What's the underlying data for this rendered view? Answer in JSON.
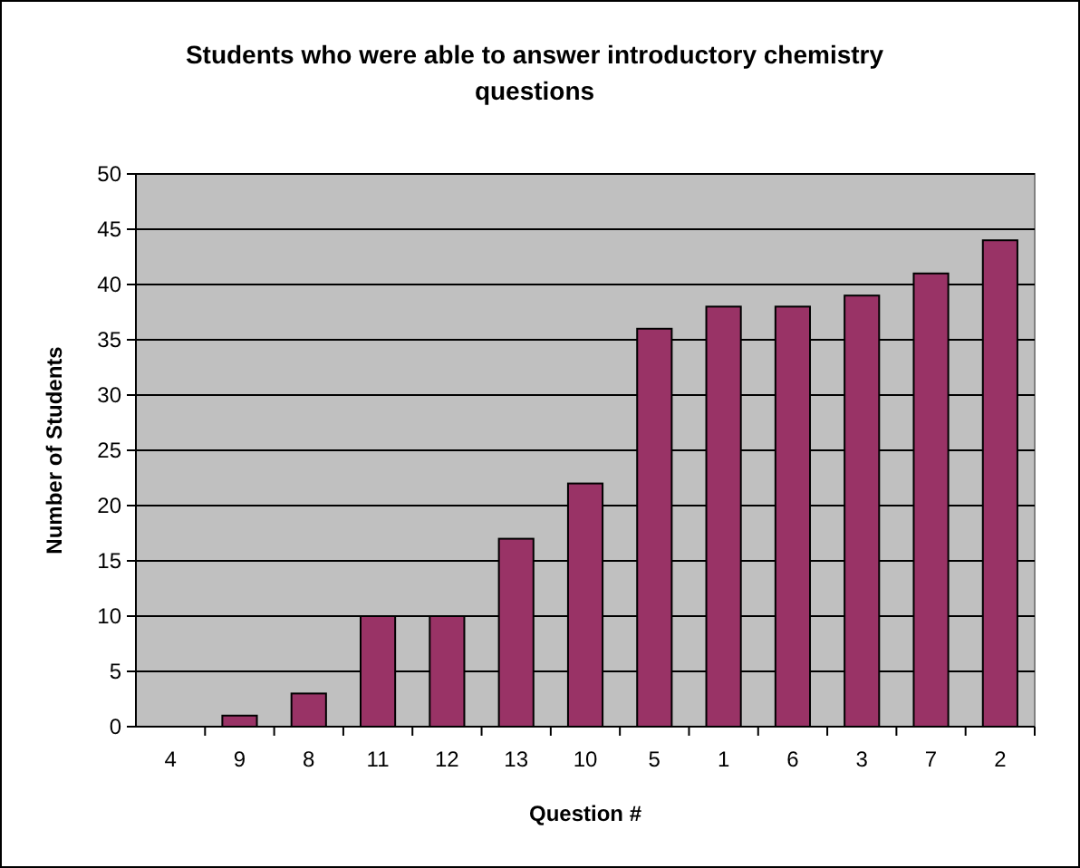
{
  "chart_data": {
    "type": "bar",
    "title": "Students who were able to answer introductory chemistry questions",
    "xlabel": "Question #",
    "ylabel": "Number of Students",
    "categories": [
      "4",
      "9",
      "8",
      "11",
      "12",
      "13",
      "10",
      "5",
      "1",
      "6",
      "3",
      "7",
      "2"
    ],
    "values": [
      0,
      1,
      3,
      10,
      10,
      17,
      22,
      36,
      38,
      38,
      39,
      41,
      44
    ],
    "color": "#993366",
    "ylim": [
      0,
      50
    ],
    "yticks": [
      0,
      5,
      10,
      15,
      20,
      25,
      30,
      35,
      40,
      45,
      50
    ],
    "grid": "y"
  }
}
